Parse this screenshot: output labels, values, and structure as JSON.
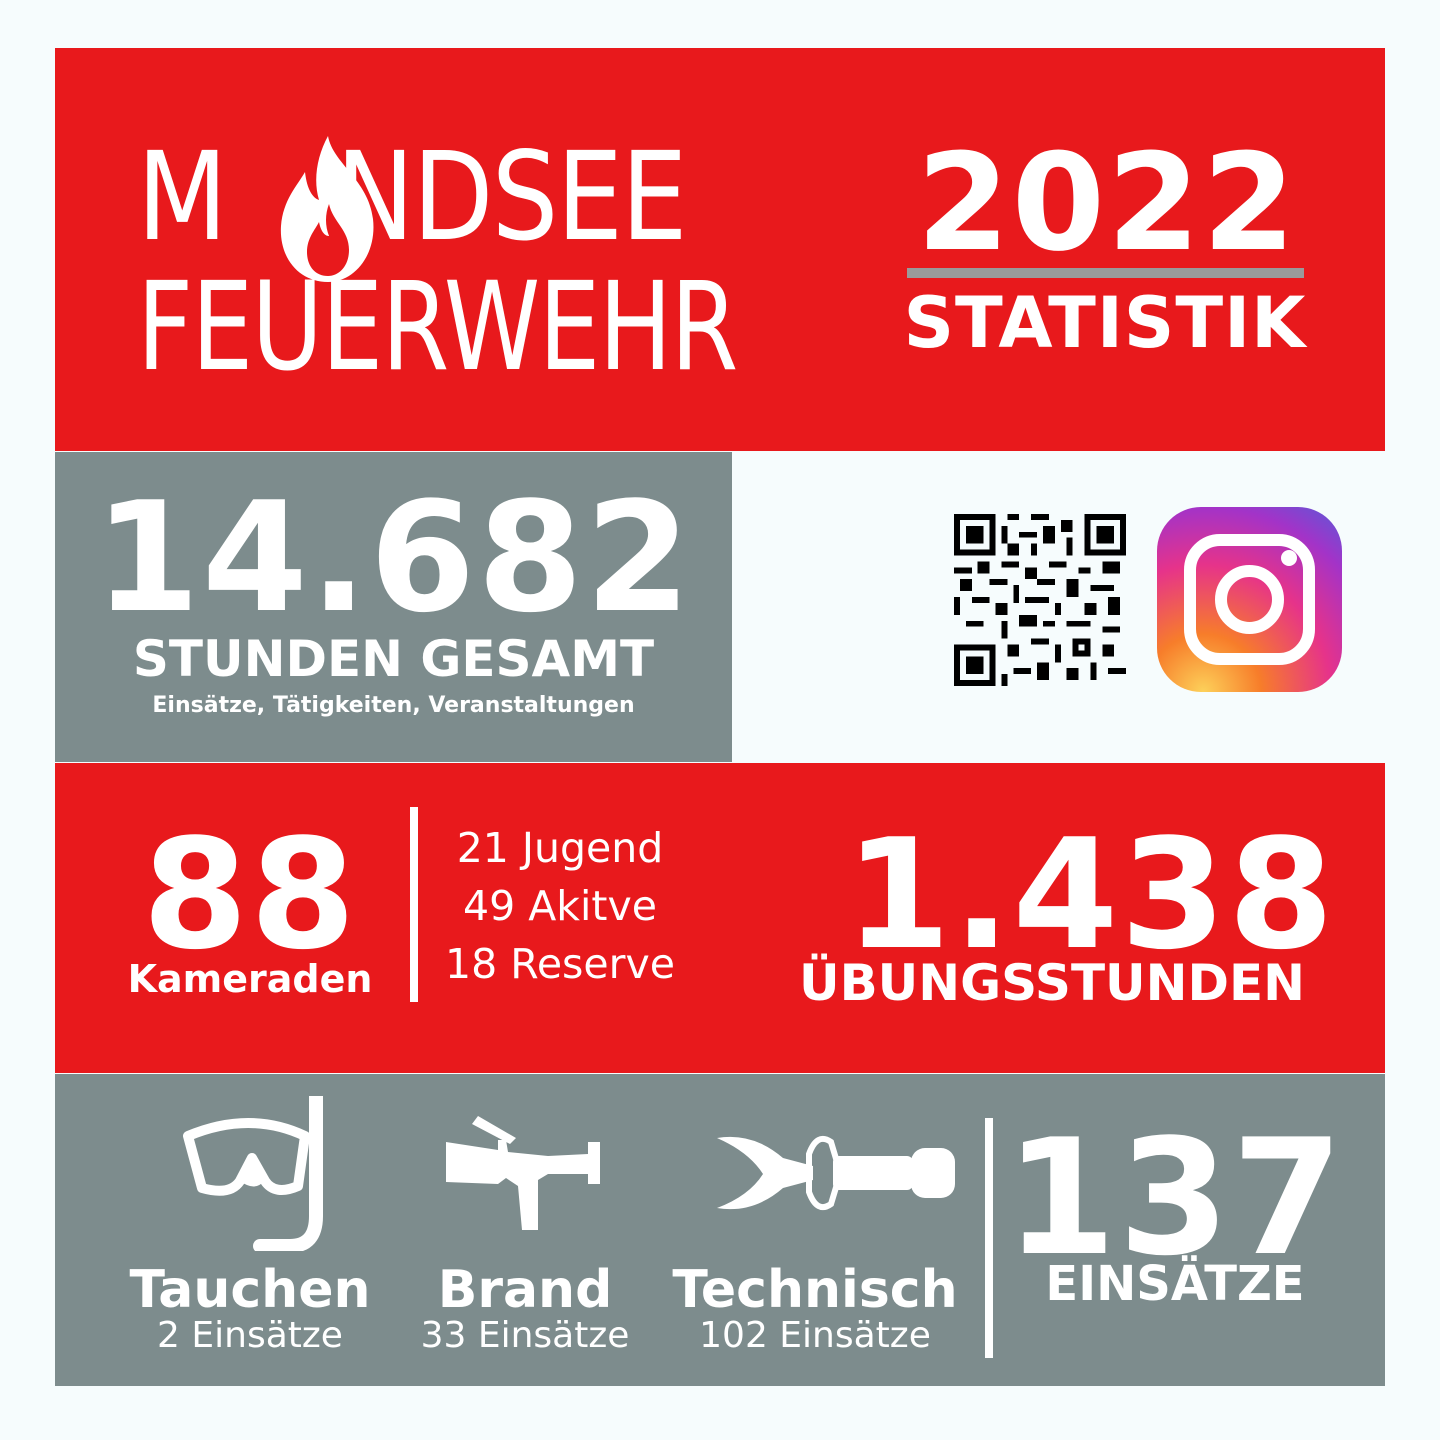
{
  "header": {
    "brand_line1_start": "M",
    "brand_line1_end": "NDSEE",
    "brand_line2": "FEUERWEHR",
    "year": "2022",
    "subtitle": "STATISTIK"
  },
  "hours": {
    "value": "14.682",
    "label": "STUNDEN GESAMT",
    "sub": "Einsätze, Tätigkeiten, Veranstaltungen"
  },
  "social": {
    "qr_icon": "qr-code-icon",
    "instagram_icon": "instagram-icon"
  },
  "members": {
    "total": "88",
    "total_label": "Kameraden",
    "breakdown": [
      "21 Jugend",
      "49 Akitve",
      "18 Reserve"
    ],
    "training_value": "1.438",
    "training_label": "ÜBUNGSSTUNDEN"
  },
  "missions": {
    "categories": [
      {
        "icon": "diving-mask-icon",
        "title": "Tauchen",
        "count": "2 Einsätze"
      },
      {
        "icon": "fire-nozzle-icon",
        "title": "Brand",
        "count": "33 Einsätze"
      },
      {
        "icon": "hydraulic-spreader-icon",
        "title": "Technisch",
        "count": "102 Einsätze"
      }
    ],
    "total": "137",
    "total_label": "EINSÄTZE"
  },
  "colors": {
    "red": "#e8191c",
    "grey": "#7d8c8d",
    "background": "#f6fcfd"
  }
}
